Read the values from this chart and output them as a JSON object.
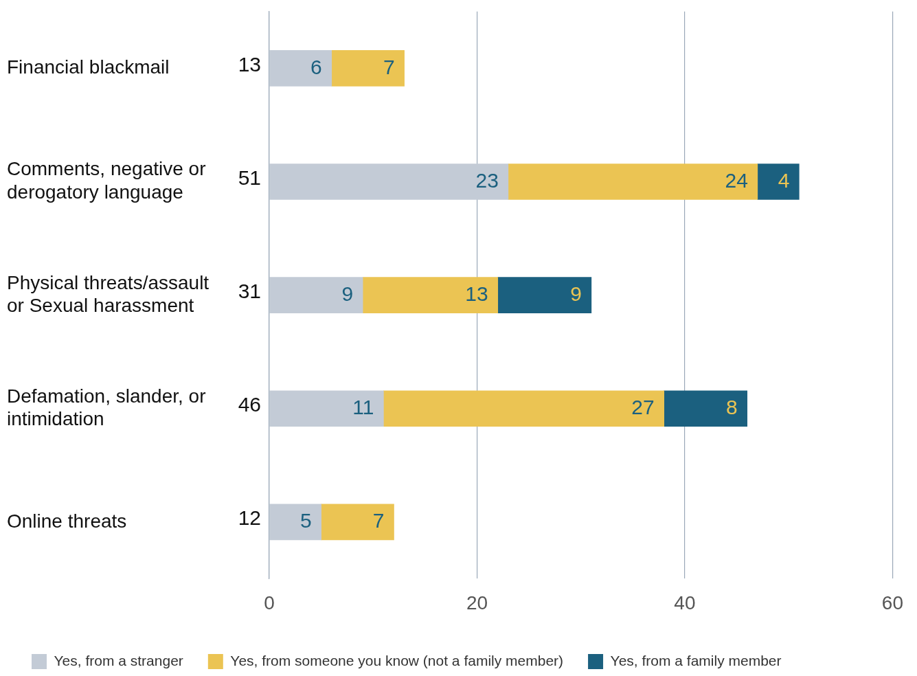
{
  "chart_data": {
    "type": "bar",
    "orientation": "horizontal",
    "stacked": true,
    "categories": [
      "Financial blackmail",
      "Comments, negative or derogatory language",
      "Physical threats/assault or Sexual harassment",
      "Defamation, slander, or intimidation",
      "Online threats"
    ],
    "series": [
      {
        "name": "Yes, from a stranger",
        "color": "#c3cbd6",
        "values": [
          6,
          23,
          9,
          11,
          5
        ]
      },
      {
        "name": "Yes, from someone you know (not a family member)",
        "color": "#ebc453",
        "values": [
          7,
          24,
          13,
          27,
          7
        ]
      },
      {
        "name": "Yes, from a family member",
        "color": "#1b607f",
        "values": [
          null,
          4,
          9,
          8,
          null
        ]
      }
    ],
    "totals": [
      "13",
      "51",
      "31",
      "46",
      "12"
    ],
    "data_labels": true,
    "xlim": [
      0,
      60
    ],
    "xticks": [
      0,
      20,
      40,
      60
    ],
    "grid": "x",
    "legend": "bottom"
  }
}
